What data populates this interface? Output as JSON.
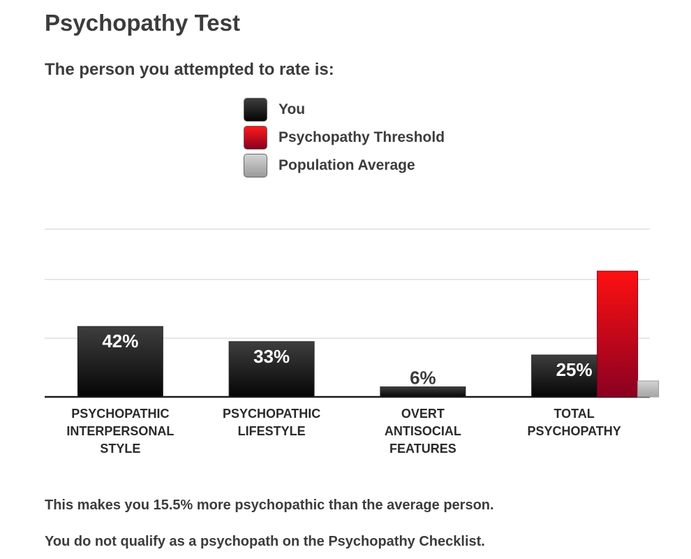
{
  "page": {
    "title": "Psychopathy Test",
    "subtitle": "The person you attempted to rate is:"
  },
  "legend": [
    {
      "label": "You",
      "color": "#1c1c1c"
    },
    {
      "label": "Psychopathy Threshold",
      "color": "#d00018"
    },
    {
      "label": "Population Average",
      "color": "#b8b8b8"
    }
  ],
  "chart_data": {
    "type": "bar",
    "categories": [
      [
        "PSYCHOPATHIC",
        "INTERPERSONAL",
        "STYLE"
      ],
      [
        "PSYCHOPATHIC",
        "LIFESTYLE"
      ],
      [
        "OVERT",
        "ANTISOCIAL",
        "FEATURES"
      ],
      [
        "TOTAL",
        "PSYCHOPATHY"
      ]
    ],
    "series": [
      {
        "name": "You",
        "values": [
          42,
          33,
          6,
          25
        ],
        "labels": [
          "42%",
          "33%",
          "6%",
          "25%"
        ]
      },
      {
        "name": "Psychopathy Threshold",
        "values": [
          null,
          null,
          null,
          75
        ]
      },
      {
        "name": "Population Average",
        "values": [
          null,
          null,
          null,
          9.5
        ]
      }
    ],
    "ylim": [
      0,
      105
    ],
    "grid": true,
    "legend_position": "top-center"
  },
  "summary": {
    "line1": "This makes you 15.5% more psychopathic than the average person.",
    "line2": "You do not qualify as a psychopath on the Psychopathy Checklist."
  }
}
